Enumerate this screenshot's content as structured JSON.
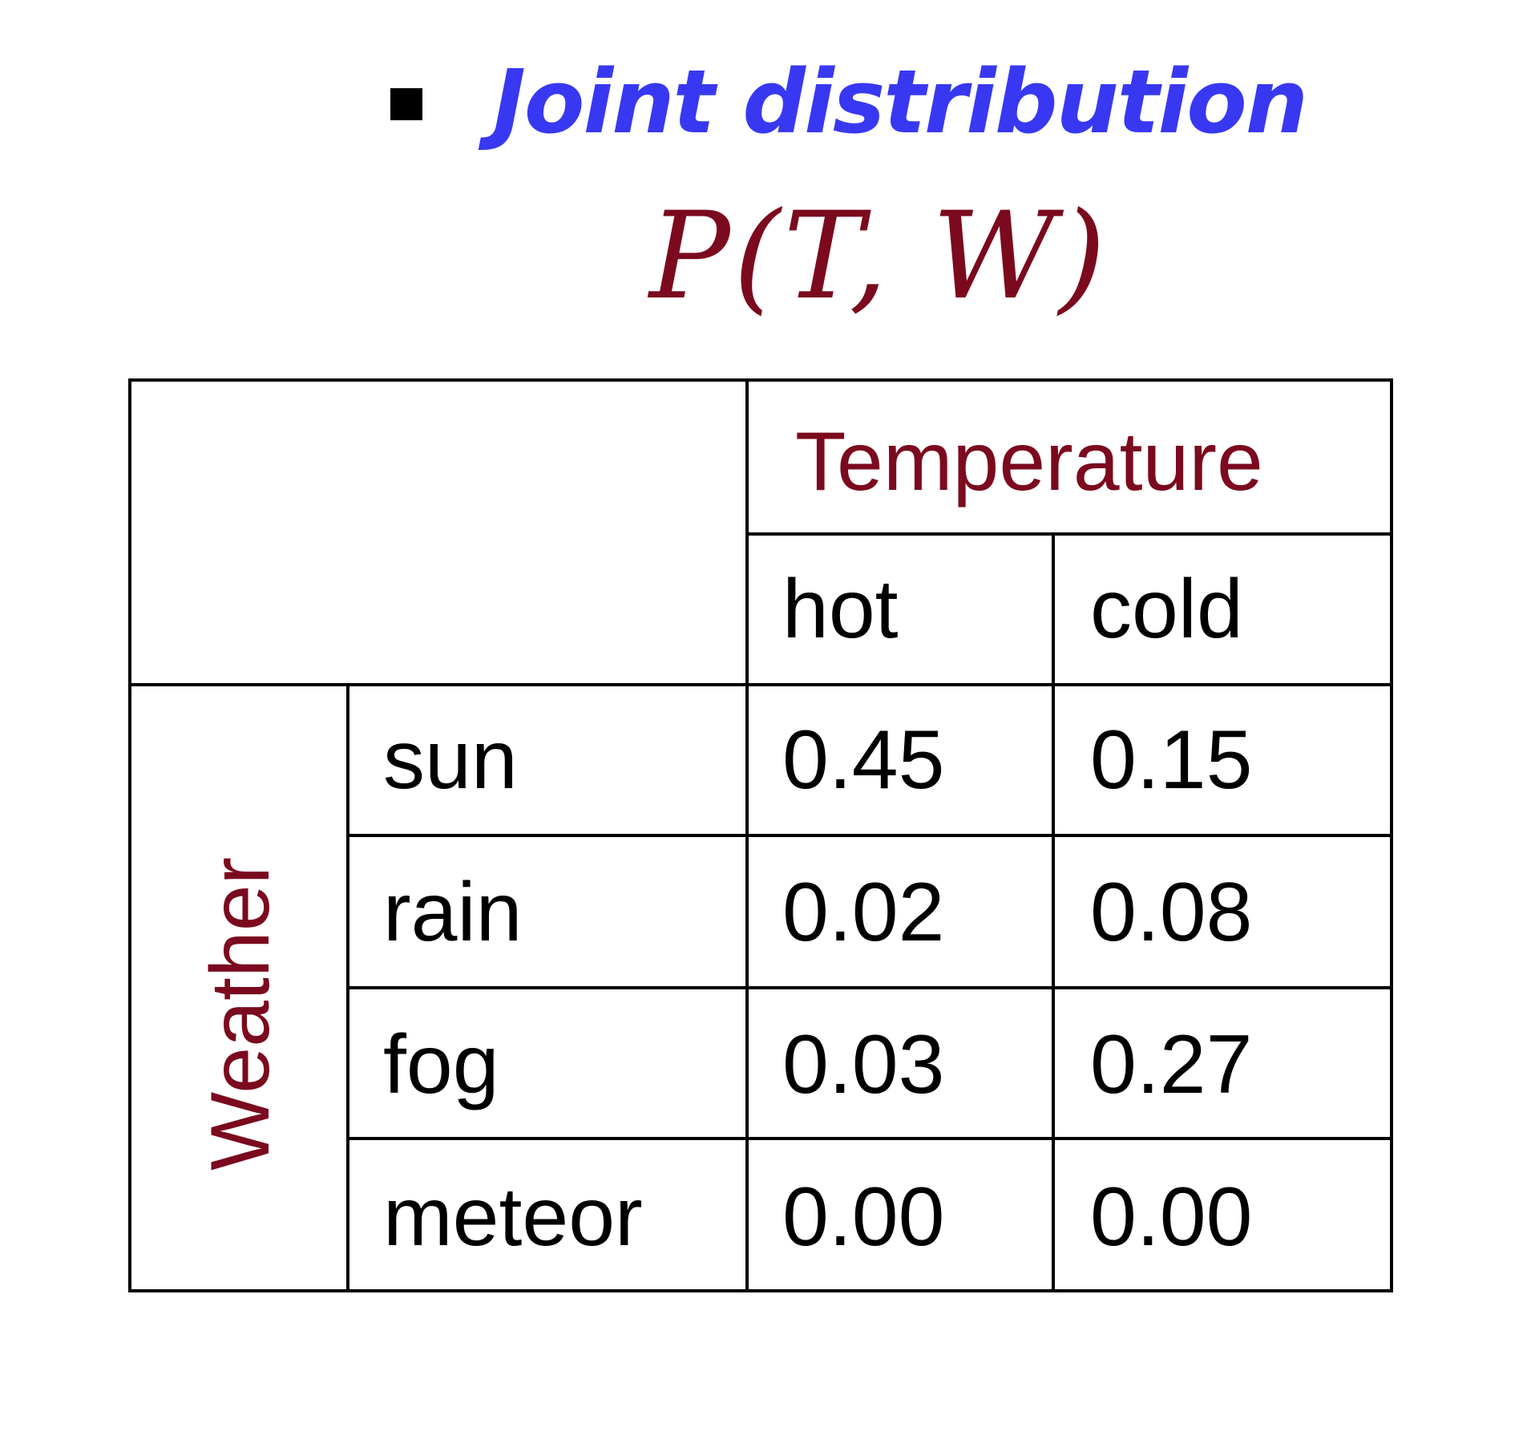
{
  "heading": {
    "bullet_text": "Joint distribution",
    "accent_color": "#3838f2"
  },
  "formula": {
    "text": "P(T, W)",
    "color": "#7b0a1e"
  },
  "table": {
    "column_variable": "Temperature",
    "row_variable": "Weather",
    "columns": [
      "hot",
      "cold"
    ],
    "rows": [
      {
        "label": "sun",
        "values": [
          "0.45",
          "0.15"
        ]
      },
      {
        "label": "rain",
        "values": [
          "0.02",
          "0.08"
        ]
      },
      {
        "label": "fog",
        "values": [
          "0.03",
          "0.27"
        ]
      },
      {
        "label": "meteor",
        "values": [
          "0.00",
          "0.00"
        ]
      }
    ],
    "label_color": "#7b0a1e"
  }
}
